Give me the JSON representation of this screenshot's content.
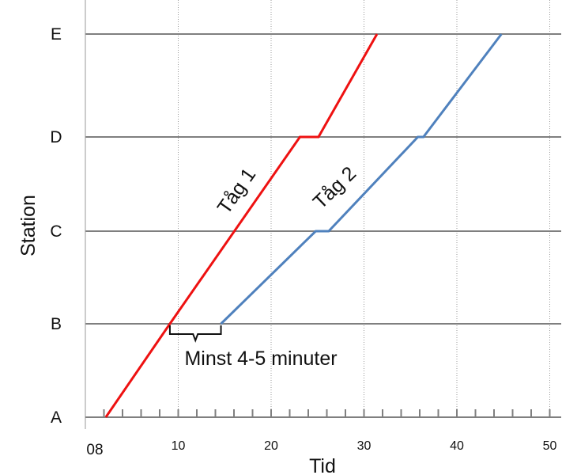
{
  "chart_data": {
    "type": "line",
    "title": "",
    "xlabel": "Tid",
    "ylabel": "Station",
    "xlim": [
      0,
      51
    ],
    "stations": [
      "A",
      "B",
      "C",
      "D",
      "E"
    ],
    "x_ticks": [
      {
        "value": 0,
        "label": "08"
      },
      {
        "value": 10,
        "label": "10"
      },
      {
        "value": 20,
        "label": "20"
      },
      {
        "value": 30,
        "label": "30"
      },
      {
        "value": 40,
        "label": "40"
      },
      {
        "value": 50,
        "label": "50"
      }
    ],
    "grid": true,
    "series": [
      {
        "name": "Tåg 1",
        "color": "#ee1111",
        "points": [
          {
            "x": 2.2,
            "y": 0
          },
          {
            "x": 9.1,
            "y": 1
          },
          {
            "x": 23.1,
            "y": 3
          },
          {
            "x": 25.1,
            "y": 3
          },
          {
            "x": 31.4,
            "y": 4
          }
        ]
      },
      {
        "name": "Tåg 2",
        "color": "#4f81bd",
        "points": [
          {
            "x": 14.6,
            "y": 1
          },
          {
            "x": 24.8,
            "y": 2
          },
          {
            "x": 26.2,
            "y": 2
          },
          {
            "x": 35.8,
            "y": 3
          },
          {
            "x": 36.4,
            "y": 3
          },
          {
            "x": 44.8,
            "y": 4
          }
        ]
      }
    ],
    "annotations": [
      {
        "text": "Minst 4-5 minuter",
        "bracket_x": [
          9.1,
          14.6
        ],
        "station": "B"
      }
    ]
  }
}
